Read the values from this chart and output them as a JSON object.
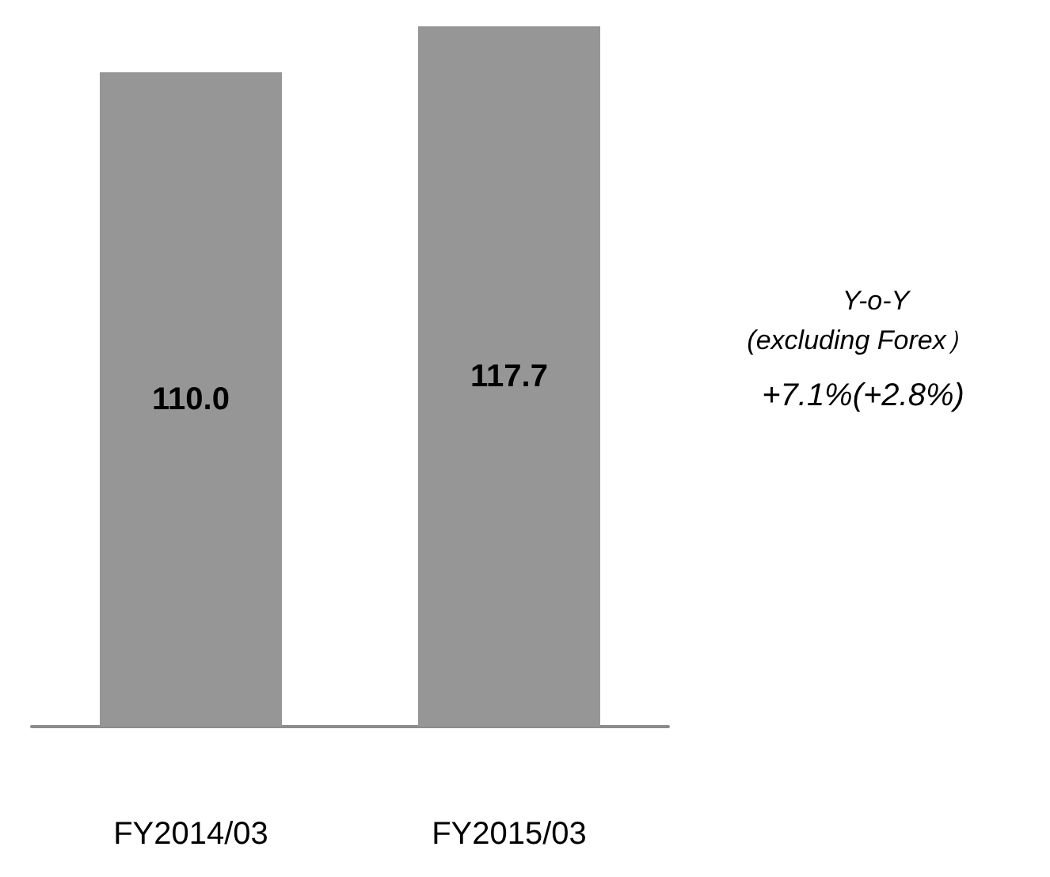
{
  "chart_data": {
    "type": "bar",
    "categories": [
      "FY2014/03",
      "FY2015/03"
    ],
    "values": [
      110.0,
      117.7
    ],
    "value_labels": [
      "110.0",
      "117.7"
    ],
    "color": "#969696",
    "annotations": [
      "Y-o-Y",
      "(excluding Forex）",
      "+7.1%(+2.8%)"
    ]
  }
}
